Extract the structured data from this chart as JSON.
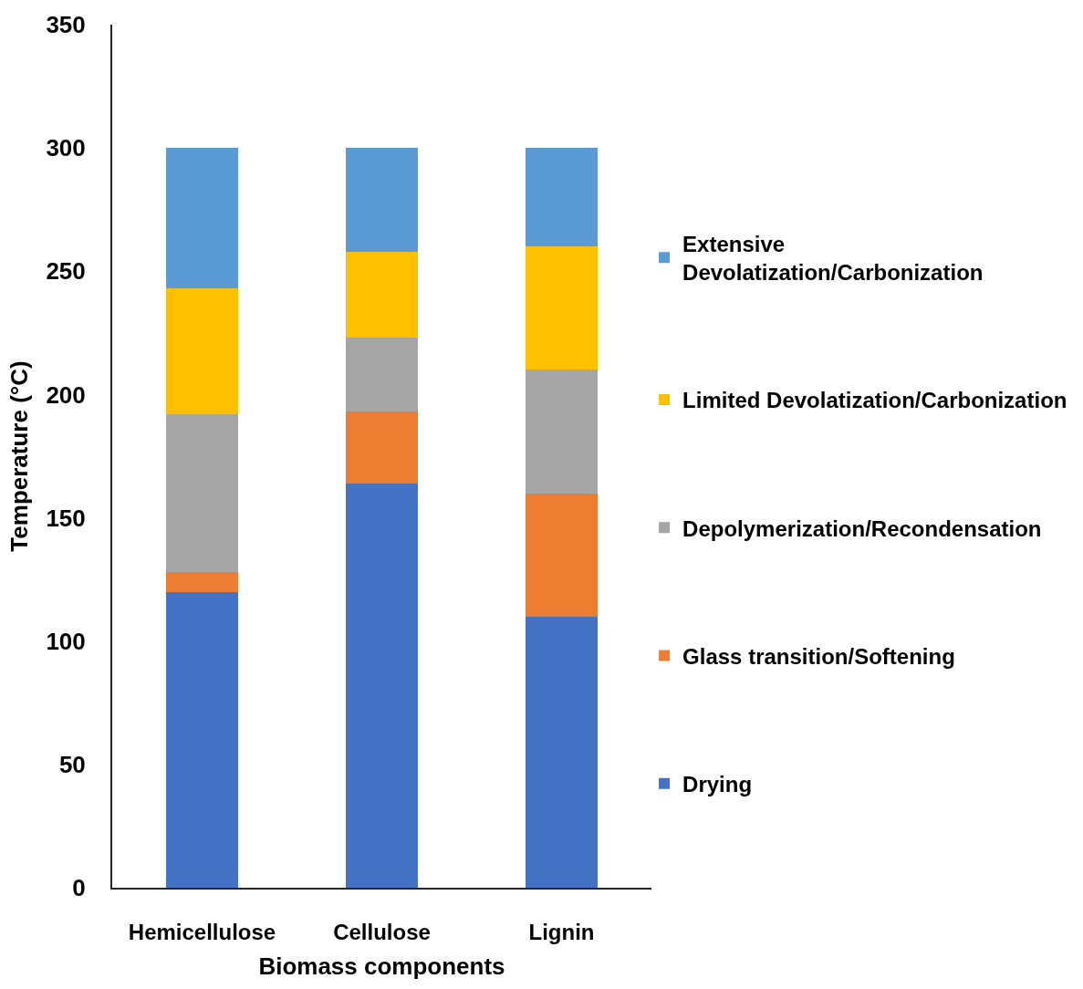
{
  "chart_data": {
    "type": "bar",
    "stacked": true,
    "xlabel": "Biomass components",
    "ylabel": "Temperature (°C)",
    "categories": [
      "Hemicellulose",
      "Cellulose",
      "Lignin"
    ],
    "series": [
      {
        "name": "Drying",
        "color": "#4472c4",
        "values": [
          120,
          164,
          110
        ]
      },
      {
        "name": "Glass transition/Softening",
        "color": "#ed7d31",
        "values": [
          8,
          29,
          50
        ]
      },
      {
        "name": "Depolymerization/Recondensation",
        "color": "#a5a5a5",
        "values": [
          64,
          30,
          50
        ]
      },
      {
        "name": "Limited Devolatization/Carbonization",
        "color": "#ffc000",
        "values": [
          51,
          35,
          50
        ]
      },
      {
        "name": "Extensive Devolatization/Carbonization",
        "color": "#5b9bd5",
        "values": [
          57,
          42,
          40
        ]
      }
    ],
    "ylim": [
      0,
      350
    ],
    "yticks": [
      0,
      50,
      100,
      150,
      200,
      250,
      300,
      350
    ],
    "legend": "right"
  }
}
